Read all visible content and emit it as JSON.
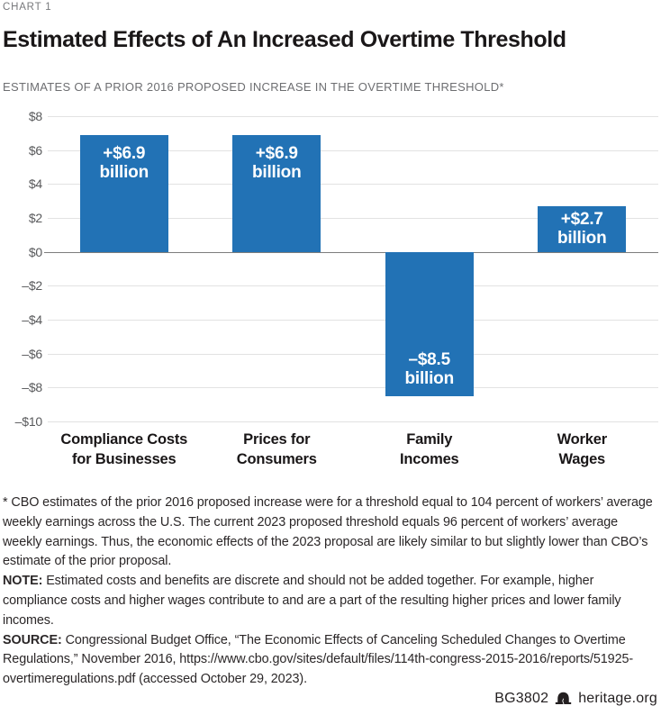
{
  "page": {
    "kicker": "CHART 1",
    "title": "Estimated Effects of An Increased Overtime Threshold",
    "subtitle": "ESTIMATES OF A PRIOR 2016 PROPOSED INCREASE IN THE OVERTIME THRESHOLD*"
  },
  "chart_data": {
    "type": "bar",
    "categories": [
      "Compliance Costs for Businesses",
      "Prices for Consumers",
      "Family Incomes",
      "Worker Wages"
    ],
    "category_lines": [
      [
        "Compliance Costs",
        "for Businesses"
      ],
      [
        "Prices for",
        "Consumers"
      ],
      [
        "Family",
        "Incomes"
      ],
      [
        "Worker",
        "Wages"
      ]
    ],
    "values": [
      6.9,
      6.9,
      -8.5,
      2.7
    ],
    "bar_labels": [
      [
        "+$6.9",
        "billion"
      ],
      [
        "+$6.9",
        "billion"
      ],
      [
        "–$8.5",
        "billion"
      ],
      [
        "+$2.7",
        "billion"
      ]
    ],
    "label_anchor": [
      "top",
      "top",
      "bottom",
      "middle"
    ],
    "ylim": [
      -10,
      8
    ],
    "ytick_step": 2,
    "ytick_labels": [
      "$8",
      "$6",
      "$4",
      "$2",
      "$0",
      "–$2",
      "–$4",
      "–$6",
      "–$8",
      "–$10"
    ],
    "bar_color": "#2272b5",
    "grid": true,
    "zero_line": true,
    "legend": "none",
    "units_shown": "$ billions (implied by tick labels)"
  },
  "footnotes": {
    "star": "* CBO estimates of the prior 2016 proposed increase were for a threshold equal to 104 percent of workers’ average weekly earnings across the U.S. The current 2023 proposed threshold equals 96 percent of workers’ average weekly earnings. Thus, the economic effects of the 2023 proposal are likely similar to but slightly lower than CBO’s estimate of the prior proposal.",
    "note_label": "NOTE:",
    "note_text": "Estimated costs and benefits are discrete and should not be added together. For example, higher compliance costs and higher wages contribute to and are a part of the resulting higher prices and lower family incomes.",
    "source_label": "SOURCE:",
    "source_text": "Congressional Budget Office, “The Economic Effects of Canceling Scheduled Changes to Overtime Regulations,” November 2016, https://www.cbo.gov/sites/default/files/114th-congress-2015-2016/reports/51925-overtimeregulations.pdf (accessed October 29, 2023)."
  },
  "footer": {
    "doc_id": "BG3802",
    "logo": "liberty-bell-icon",
    "site": "heritage.org"
  },
  "colors": {
    "bar_blue": "#2272b5",
    "gridline": "#e2e2e2",
    "zero_line": "#7d7d7d",
    "muted_text": "#6d6e71",
    "dark_text": "#231f20"
  }
}
